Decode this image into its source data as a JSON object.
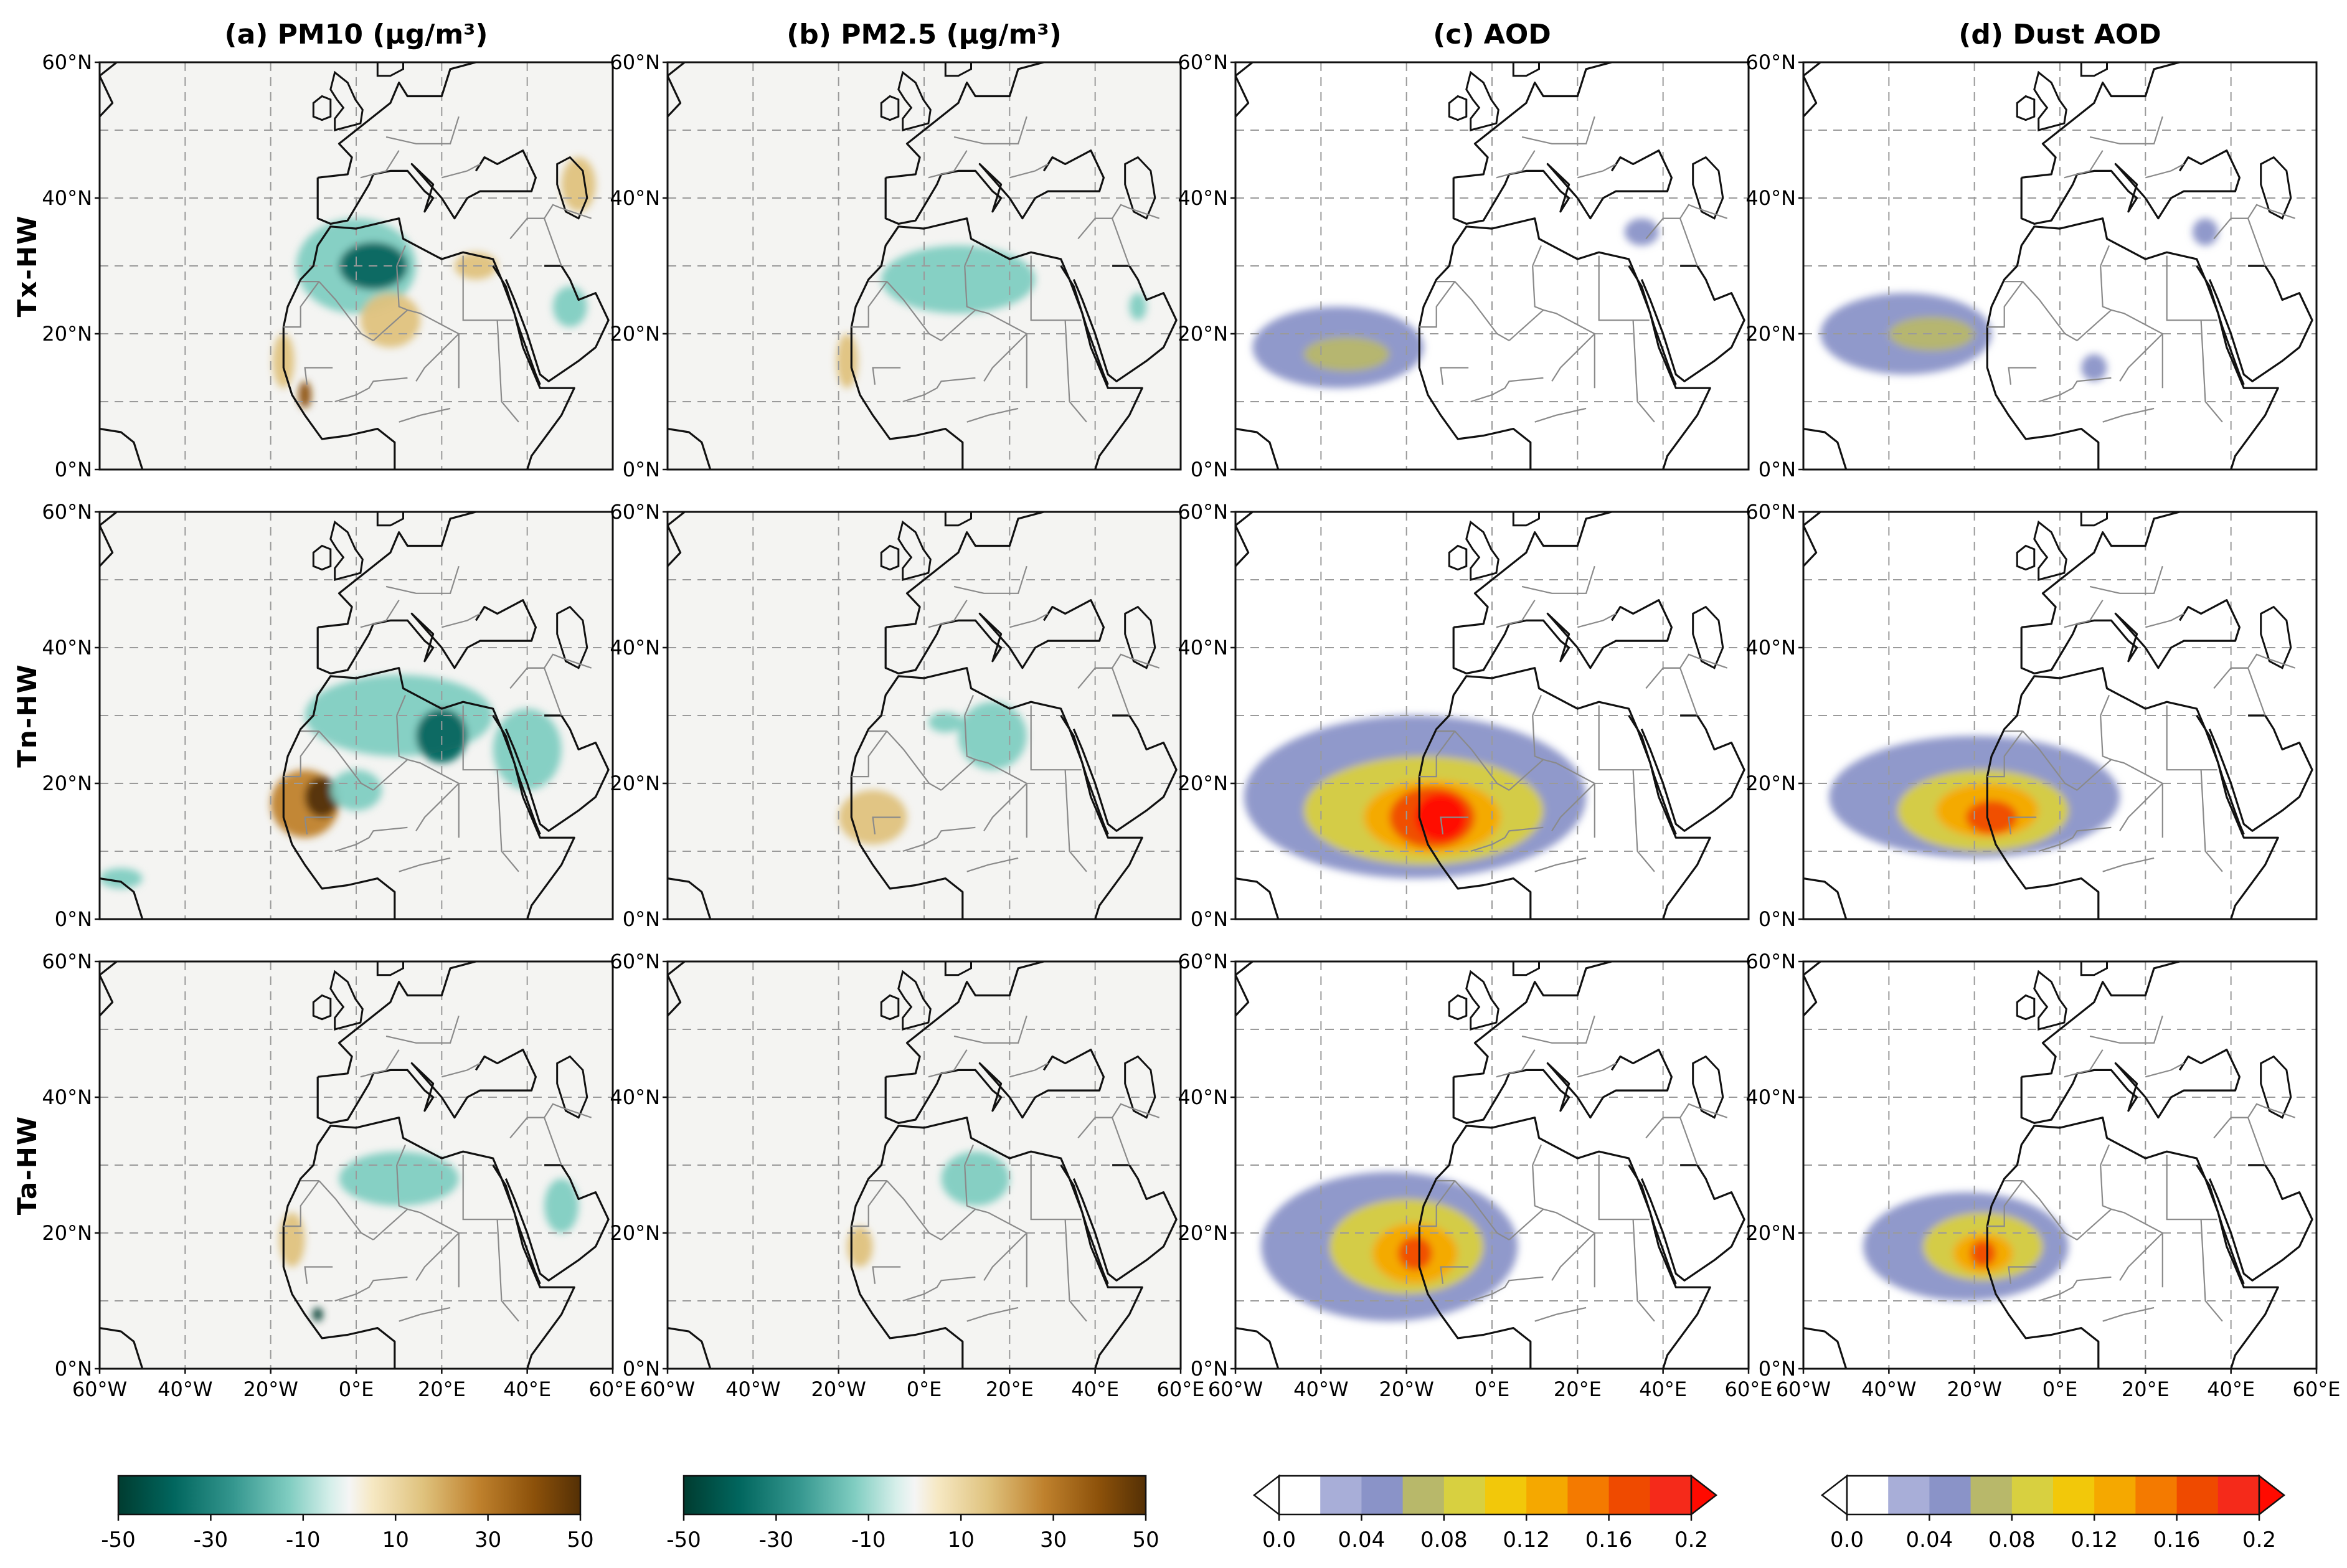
{
  "chart_data": {
    "type": "heatmap",
    "description_type": "map panel grid",
    "columns": [
      {
        "title": "(a) PM10 (μg/m³)",
        "colormap": "BrBG_r",
        "colorbar_ticks": [
          "-50",
          "-30",
          "-10",
          "10",
          "30",
          "50"
        ],
        "range": [
          -50,
          50
        ]
      },
      {
        "title": "(b) PM2.5 (μg/m³)",
        "colormap": "BrBG_r",
        "colorbar_ticks": [
          "-50",
          "-30",
          "-10",
          "10",
          "30",
          "50"
        ],
        "range": [
          -50,
          50
        ]
      },
      {
        "title": "(c) AOD",
        "colormap": "white-blue-yellow-red",
        "colorbar_ticks": [
          "0.0",
          "0.04",
          "0.08",
          "0.12",
          "0.16",
          "0.2"
        ],
        "range": [
          0,
          0.2
        ],
        "extend": "both"
      },
      {
        "title": "(d) Dust AOD",
        "colormap": "white-blue-yellow-red",
        "colorbar_ticks": [
          "0.0",
          "0.04",
          "0.08",
          "0.12",
          "0.16",
          "0.2"
        ],
        "range": [
          0,
          0.2
        ],
        "extend": "both"
      }
    ],
    "rows": [
      "Tx-HW",
      "Tn-HW",
      "Ta-HW"
    ],
    "lat_ticks": [
      "60°N",
      "40°N",
      "20°N",
      "0°N"
    ],
    "lon_ticks": [
      "60°W",
      "40°W",
      "20°W",
      "0°E",
      "20°E",
      "40°E",
      "60°E"
    ],
    "lat_range": [
      0,
      60
    ],
    "lon_range": [
      -60,
      60
    ],
    "diverging_colors": [
      "#003c30",
      "#01665e",
      "#35978f",
      "#80cdc1",
      "#c7eae5",
      "#f5f5f5",
      "#f6e8c3",
      "#dfc27d",
      "#bf812d",
      "#8c510a",
      "#543005"
    ],
    "aod_colors": [
      "#ffffff",
      "#a8aed8",
      "#8a93c8",
      "#b8b86a",
      "#d8d040",
      "#f2c80a",
      "#f5a800",
      "#f47a00",
      "#ef4a00",
      "#f52a1a",
      "#ff0a00"
    ],
    "features": [
      {
        "col": 0,
        "row": 0,
        "blobs": [
          {
            "lon": 0,
            "lat": 30,
            "rlon": 14,
            "rlat": 7,
            "v": -25
          },
          {
            "lon": 4,
            "lat": 30,
            "rlon": 8,
            "rlat": 3.5,
            "v": -45
          },
          {
            "lon": 8,
            "lat": 22,
            "rlon": 7,
            "rlat": 4,
            "v": 22
          },
          {
            "lon": -17,
            "lat": 16,
            "rlon": 2.5,
            "rlat": 4,
            "v": 22
          },
          {
            "lon": -12,
            "lat": 11,
            "rlon": 1.5,
            "rlat": 2,
            "v": 42
          },
          {
            "lon": 28,
            "lat": 30,
            "rlon": 5,
            "rlat": 2,
            "v": 20
          },
          {
            "lon": 52,
            "lat": 42,
            "rlon": 4,
            "rlat": 4,
            "v": 20
          },
          {
            "lon": 50,
            "lat": 24,
            "rlon": 4,
            "rlat": 3,
            "v": -22
          }
        ]
      },
      {
        "col": 1,
        "row": 0,
        "blobs": [
          {
            "lon": 8,
            "lat": 28,
            "rlon": 18,
            "rlat": 5,
            "v": -22
          },
          {
            "lon": -18,
            "lat": 16,
            "rlon": 2.5,
            "rlat": 4,
            "v": 22
          },
          {
            "lon": 50,
            "lat": 24,
            "rlon": 2,
            "rlat": 2,
            "v": -20
          }
        ]
      },
      {
        "col": 2,
        "row": 0,
        "blobs": [
          {
            "lon": -36,
            "lat": 18,
            "rlon": 20,
            "rlat": 6,
            "v": 0.03
          },
          {
            "lon": -34,
            "lat": 17,
            "rlon": 10,
            "rlat": 2.5,
            "v": 0.05
          },
          {
            "lon": 35,
            "lat": 35,
            "rlon": 4,
            "rlat": 2,
            "v": 0.04
          }
        ]
      },
      {
        "col": 3,
        "row": 0,
        "blobs": [
          {
            "lon": -36,
            "lat": 20,
            "rlon": 20,
            "rlat": 6,
            "v": 0.03
          },
          {
            "lon": -30,
            "lat": 20,
            "rlon": 10,
            "rlat": 2.5,
            "v": 0.05
          },
          {
            "lon": 34,
            "lat": 35,
            "rlon": 3,
            "rlat": 2,
            "v": 0.04
          },
          {
            "lon": 8,
            "lat": 15,
            "rlon": 3,
            "rlat": 2,
            "v": 0.03
          }
        ]
      },
      {
        "col": 0,
        "row": 1,
        "blobs": [
          {
            "lon": 10,
            "lat": 30,
            "rlon": 22,
            "rlat": 6,
            "v": -22
          },
          {
            "lon": 20,
            "lat": 27,
            "rlon": 6,
            "rlat": 4,
            "v": -40
          },
          {
            "lon": 40,
            "lat": 25,
            "rlon": 8,
            "rlat": 6,
            "v": -22
          },
          {
            "lon": -12,
            "lat": 17,
            "rlon": 8,
            "rlat": 5,
            "v": 28
          },
          {
            "lon": -8,
            "lat": 18,
            "rlon": 4,
            "rlat": 3,
            "v": 46
          },
          {
            "lon": -55,
            "lat": 6,
            "rlon": 5,
            "rlat": 1.5,
            "v": -22
          },
          {
            "lon": 0,
            "lat": 19,
            "rlon": 6,
            "rlat": 3,
            "v": -20
          }
        ]
      },
      {
        "col": 1,
        "row": 1,
        "blobs": [
          {
            "lon": 16,
            "lat": 27,
            "rlon": 8,
            "rlat": 5,
            "v": -22
          },
          {
            "lon": -12,
            "lat": 15,
            "rlon": 8,
            "rlat": 4,
            "v": 24
          },
          {
            "lon": 5,
            "lat": 29,
            "rlon": 4,
            "rlat": 1.5,
            "v": -20
          }
        ]
      },
      {
        "col": 2,
        "row": 1,
        "blobs": [
          {
            "lon": -18,
            "lat": 18,
            "rlon": 40,
            "rlat": 12,
            "v": 0.03
          },
          {
            "lon": -16,
            "lat": 16,
            "rlon": 28,
            "rlat": 8,
            "v": 0.07
          },
          {
            "lon": -14,
            "lat": 15,
            "rlon": 16,
            "rlat": 5.5,
            "v": 0.11
          },
          {
            "lon": -14,
            "lat": 15,
            "rlon": 10,
            "rlat": 4.5,
            "v": 0.16
          },
          {
            "lon": -12,
            "lat": 15,
            "rlon": 6,
            "rlat": 3.5,
            "v": 0.2
          }
        ]
      },
      {
        "col": 3,
        "row": 1,
        "blobs": [
          {
            "lon": -20,
            "lat": 18,
            "rlon": 34,
            "rlat": 9,
            "v": 0.03
          },
          {
            "lon": -18,
            "lat": 16,
            "rlon": 20,
            "rlat": 6,
            "v": 0.07
          },
          {
            "lon": -17,
            "lat": 16,
            "rlon": 12,
            "rlat": 4,
            "v": 0.11
          },
          {
            "lon": -16,
            "lat": 15,
            "rlon": 6,
            "rlat": 2.5,
            "v": 0.15
          }
        ]
      },
      {
        "col": 0,
        "row": 2,
        "blobs": [
          {
            "lon": 10,
            "lat": 28,
            "rlon": 14,
            "rlat": 4,
            "v": -22
          },
          {
            "lon": -15,
            "lat": 19,
            "rlon": 3,
            "rlat": 4,
            "v": 22
          },
          {
            "lon": 48,
            "lat": 24,
            "rlon": 4,
            "rlat": 4,
            "v": -22
          },
          {
            "lon": -9,
            "lat": 8,
            "rlon": 1.2,
            "rlat": 1,
            "v": -48
          }
        ]
      },
      {
        "col": 1,
        "row": 2,
        "blobs": [
          {
            "lon": 12,
            "lat": 28,
            "rlon": 8,
            "rlat": 4,
            "v": -22
          },
          {
            "lon": -15,
            "lat": 18,
            "rlon": 3,
            "rlat": 3,
            "v": 22
          }
        ]
      },
      {
        "col": 2,
        "row": 2,
        "blobs": [
          {
            "lon": -24,
            "lat": 18,
            "rlon": 30,
            "rlat": 11,
            "v": 0.03
          },
          {
            "lon": -20,
            "lat": 18,
            "rlon": 18,
            "rlat": 7,
            "v": 0.07
          },
          {
            "lon": -18,
            "lat": 17,
            "rlon": 10,
            "rlat": 4.5,
            "v": 0.11
          },
          {
            "lon": -18,
            "lat": 17,
            "rlon": 4,
            "rlat": 2.5,
            "v": 0.15
          }
        ]
      },
      {
        "col": 3,
        "row": 2,
        "blobs": [
          {
            "lon": -22,
            "lat": 18,
            "rlon": 24,
            "rlat": 8,
            "v": 0.03
          },
          {
            "lon": -18,
            "lat": 18,
            "rlon": 14,
            "rlat": 5,
            "v": 0.07
          },
          {
            "lon": -18,
            "lat": 17,
            "rlon": 7,
            "rlat": 3,
            "v": 0.11
          },
          {
            "lon": -18,
            "lat": 17,
            "rlon": 3,
            "rlat": 2,
            "v": 0.15
          }
        ]
      }
    ]
  }
}
